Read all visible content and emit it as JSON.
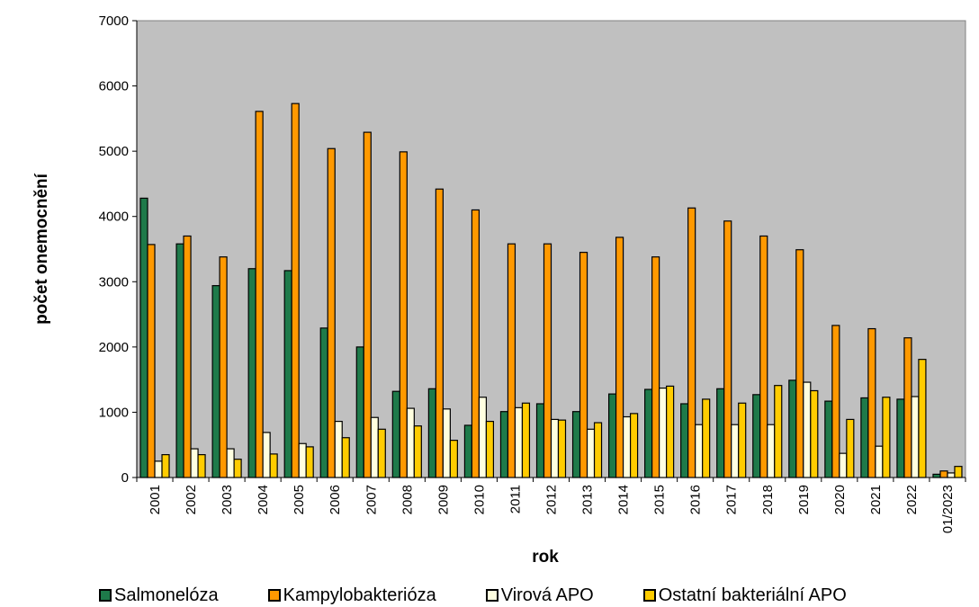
{
  "chart_data": {
    "type": "bar",
    "xlabel": "rok",
    "ylabel": "počet onemocnění",
    "ylim": [
      0,
      7000
    ],
    "yticks": [
      0,
      1000,
      2000,
      3000,
      4000,
      5000,
      6000,
      7000
    ],
    "grid": false,
    "legend_position": "bottom",
    "categories": [
      "2001",
      "2002",
      "2003",
      "2004",
      "2005",
      "2006",
      "2007",
      "2008",
      "2009",
      "2010",
      "2011",
      "2012",
      "2013",
      "2014",
      "2015",
      "2016",
      "2017",
      "2018",
      "2019",
      "2020",
      "2021",
      "2022",
      "01/2023"
    ],
    "series": [
      {
        "name": "Salmonelóza",
        "color": "#1e7a4a",
        "values": [
          4280,
          3580,
          2940,
          3200,
          3170,
          2290,
          2000,
          1320,
          1360,
          800,
          1010,
          1130,
          1010,
          1280,
          1350,
          1130,
          1360,
          1270,
          1490,
          1170,
          1220,
          1200,
          50
        ]
      },
      {
        "name": "Kampylobakterióza",
        "color": "#ff9900",
        "values": [
          3570,
          3700,
          3380,
          5610,
          5730,
          5040,
          5290,
          4990,
          4420,
          4100,
          3580,
          3580,
          3450,
          3680,
          3380,
          4130,
          3930,
          3700,
          3490,
          2330,
          2280,
          2140,
          100
        ]
      },
      {
        "name": "Virová APO",
        "color": "#ffffe0",
        "values": [
          250,
          440,
          440,
          690,
          520,
          860,
          920,
          1060,
          1050,
          1230,
          1070,
          890,
          740,
          930,
          1370,
          810,
          810,
          810,
          1460,
          370,
          480,
          1240,
          70
        ]
      },
      {
        "name": "Ostatní bakteriální APO",
        "color": "#ffcc00",
        "values": [
          350,
          350,
          280,
          360,
          470,
          610,
          740,
          790,
          570,
          860,
          1140,
          880,
          840,
          980,
          1400,
          1200,
          1140,
          1410,
          1330,
          890,
          1230,
          1810,
          170
        ]
      }
    ]
  }
}
